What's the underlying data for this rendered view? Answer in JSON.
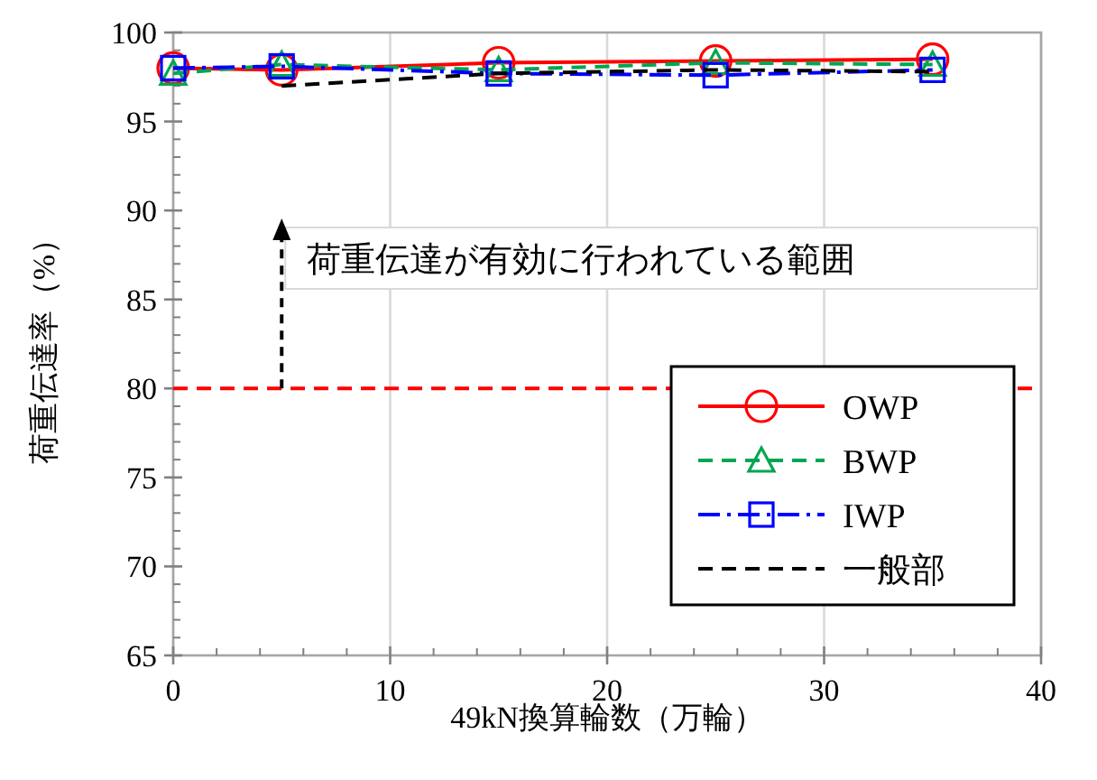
{
  "chart_data": {
    "type": "line",
    "xlabel": "49kN換算輪数（万輪）",
    "ylabel": "荷重伝達率（%）",
    "x": [
      0,
      5,
      15,
      25,
      35
    ],
    "series": [
      {
        "name": "OWP",
        "color": "#ff0000",
        "marker": "circle",
        "line_style": "solid",
        "values": [
          98.0,
          97.9,
          98.3,
          98.4,
          98.5
        ]
      },
      {
        "name": "BWP",
        "color": "#00a651",
        "marker": "triangle",
        "line_style": "dashed",
        "values": [
          97.7,
          98.2,
          97.9,
          98.3,
          98.2
        ]
      },
      {
        "name": "IWP",
        "color": "#0000ff",
        "marker": "square",
        "line_style": "dashdot",
        "values": [
          98.0,
          98.1,
          97.7,
          97.6,
          97.9
        ]
      },
      {
        "name": "一般部",
        "color": "#000000",
        "marker": "none",
        "line_style": "dashed",
        "values": [
          null,
          97.0,
          97.7,
          97.9,
          97.8
        ]
      }
    ],
    "xlim": [
      0,
      40
    ],
    "xticks": [
      0,
      10,
      20,
      30,
      40
    ],
    "ylim": [
      65,
      100
    ],
    "yticks": [
      65,
      70,
      75,
      80,
      85,
      90,
      95,
      100
    ],
    "ref_lines": [
      {
        "axis": "y",
        "value": 80,
        "color": "#ff0000",
        "line_style": "dashed"
      }
    ],
    "annotations": [
      {
        "text": "荷重伝達が有効に行われている範囲",
        "x": 5,
        "y": 80
      }
    ],
    "grid": "x",
    "legend": "bottom right"
  }
}
